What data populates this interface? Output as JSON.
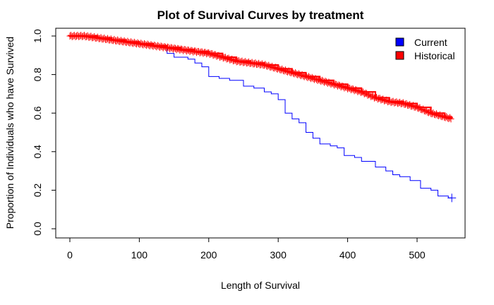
{
  "chart_data": {
    "type": "line",
    "title": "Plot of Survival Curves by treatment",
    "xlabel": "Length of Survival",
    "ylabel": "Proportion of Individuals who have Survived",
    "xlim": [
      0,
      560
    ],
    "ylim": [
      0,
      1.0
    ],
    "x_ticks": [
      "0",
      "100",
      "200",
      "300",
      "400",
      "500"
    ],
    "y_ticks": [
      "0.0",
      "0.2",
      "0.4",
      "0.6",
      "0.8",
      "1.0"
    ],
    "legend_position": "top-right",
    "grid": false,
    "series": [
      {
        "name": "Current",
        "color": "#0000ff",
        "points": [
          [
            0,
            1.0
          ],
          [
            20,
            1.0
          ],
          [
            40,
            0.99
          ],
          [
            60,
            0.98
          ],
          [
            80,
            0.97
          ],
          [
            100,
            0.96
          ],
          [
            115,
            0.95
          ],
          [
            130,
            0.94
          ],
          [
            140,
            0.91
          ],
          [
            150,
            0.89
          ],
          [
            170,
            0.88
          ],
          [
            180,
            0.86
          ],
          [
            190,
            0.84
          ],
          [
            200,
            0.79
          ],
          [
            215,
            0.78
          ],
          [
            230,
            0.77
          ],
          [
            250,
            0.74
          ],
          [
            265,
            0.73
          ],
          [
            280,
            0.71
          ],
          [
            290,
            0.7
          ],
          [
            300,
            0.67
          ],
          [
            310,
            0.6
          ],
          [
            320,
            0.57
          ],
          [
            330,
            0.55
          ],
          [
            340,
            0.5
          ],
          [
            350,
            0.47
          ],
          [
            360,
            0.44
          ],
          [
            375,
            0.43
          ],
          [
            385,
            0.42
          ],
          [
            395,
            0.38
          ],
          [
            410,
            0.37
          ],
          [
            420,
            0.35
          ],
          [
            440,
            0.32
          ],
          [
            455,
            0.3
          ],
          [
            465,
            0.28
          ],
          [
            475,
            0.27
          ],
          [
            490,
            0.25
          ],
          [
            505,
            0.21
          ],
          [
            520,
            0.2
          ],
          [
            530,
            0.17
          ],
          [
            545,
            0.16
          ],
          [
            550,
            0.16
          ]
        ],
        "censor_marks": [
          [
            550,
            0.16
          ]
        ]
      },
      {
        "name": "Historical",
        "color": "#ff0000",
        "points": [
          [
            0,
            1.0
          ],
          [
            20,
            1.0
          ],
          [
            40,
            0.99
          ],
          [
            60,
            0.98
          ],
          [
            80,
            0.97
          ],
          [
            100,
            0.96
          ],
          [
            120,
            0.95
          ],
          [
            140,
            0.94
          ],
          [
            160,
            0.93
          ],
          [
            180,
            0.92
          ],
          [
            200,
            0.91
          ],
          [
            220,
            0.89
          ],
          [
            240,
            0.87
          ],
          [
            260,
            0.86
          ],
          [
            280,
            0.85
          ],
          [
            300,
            0.83
          ],
          [
            320,
            0.81
          ],
          [
            340,
            0.79
          ],
          [
            360,
            0.77
          ],
          [
            380,
            0.75
          ],
          [
            400,
            0.73
          ],
          [
            420,
            0.71
          ],
          [
            440,
            0.68
          ],
          [
            460,
            0.66
          ],
          [
            480,
            0.65
          ],
          [
            500,
            0.63
          ],
          [
            520,
            0.6
          ],
          [
            540,
            0.58
          ],
          [
            550,
            0.57
          ]
        ],
        "censored_throughout": true
      }
    ]
  }
}
